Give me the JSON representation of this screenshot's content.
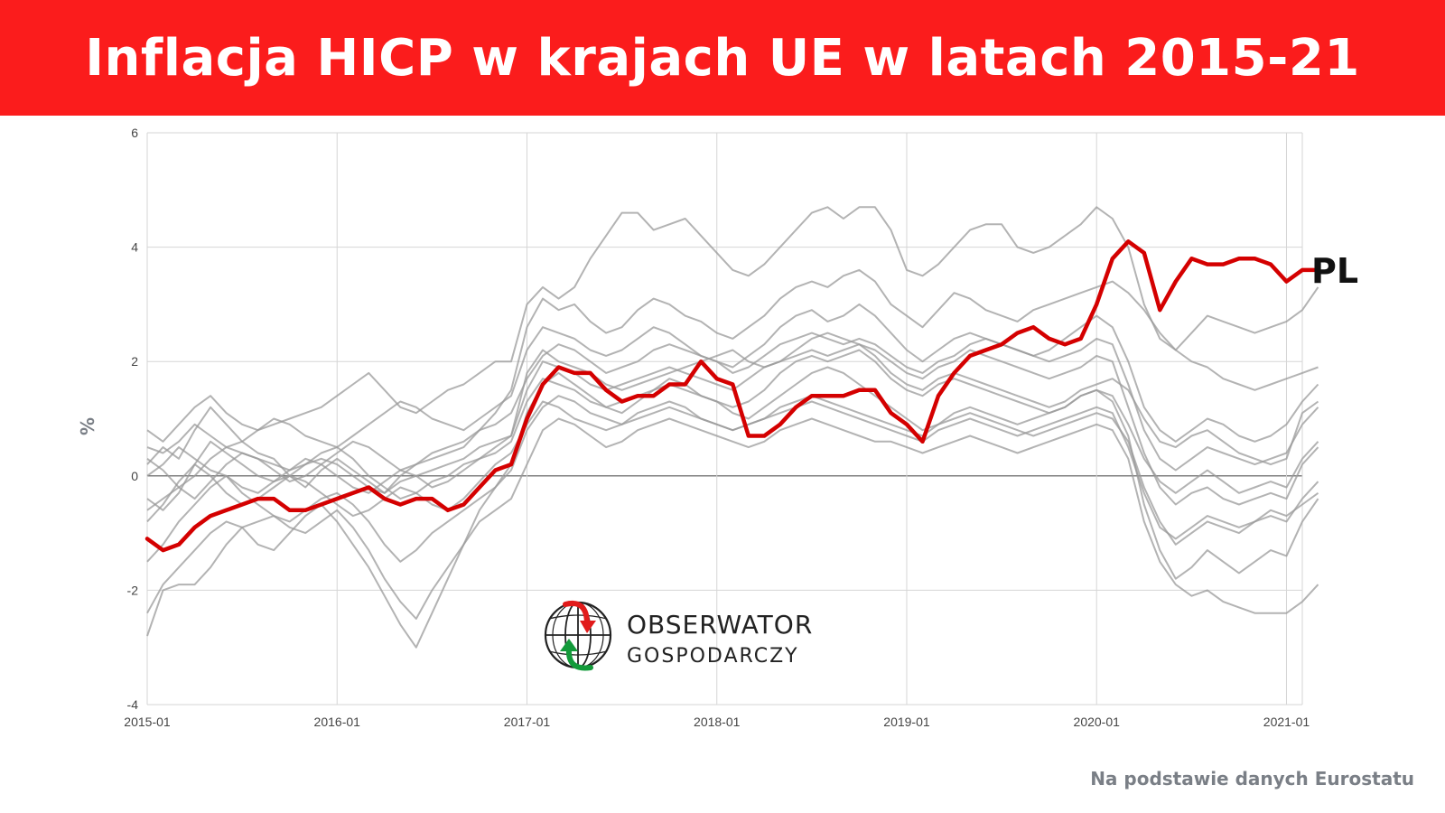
{
  "header": {
    "title": "Inflacja HICP w krajach UE w latach 2015-21"
  },
  "source_note": "Na podstawie danych Eurostatu",
  "logo": {
    "line1": "OBSERWATOR",
    "line2": "GOSPODARCZY",
    "icon": "globe-arrows-icon"
  },
  "colors": {
    "banner": "#fb1c1c",
    "highlight": "#d40000",
    "others": "#9a9a9a",
    "grid": "#d6d6d6"
  },
  "chart_data": {
    "type": "line",
    "title": "Inflacja HICP w krajach UE w latach 2015-21",
    "xlabel": "",
    "ylabel": "%",
    "ylim": [
      -4,
      6
    ],
    "yticks": [
      "-4",
      "-2",
      "0",
      "2",
      "4",
      "6"
    ],
    "xticks": [
      "2015-01",
      "2016-01",
      "2017-01",
      "2018-01",
      "2019-01",
      "2020-01",
      "2021-01"
    ],
    "grid": true,
    "x_start": "2015-01",
    "x_end": "2021-02",
    "highlight_label": "PL",
    "series": [
      {
        "name": "PL",
        "highlight": true,
        "values": [
          -1.1,
          -1.3,
          -1.2,
          -0.9,
          -0.7,
          -0.6,
          -0.5,
          -0.4,
          -0.4,
          -0.6,
          -0.6,
          -0.5,
          -0.4,
          -0.3,
          -0.2,
          -0.4,
          -0.5,
          -0.4,
          -0.4,
          -0.6,
          -0.5,
          -0.2,
          0.1,
          0.2,
          1.0,
          1.6,
          1.9,
          1.8,
          1.8,
          1.5,
          1.3,
          1.4,
          1.4,
          1.6,
          1.6,
          2.0,
          1.7,
          1.6,
          0.7,
          0.7,
          0.9,
          1.2,
          1.4,
          1.4,
          1.4,
          1.5,
          1.5,
          1.1,
          0.9,
          0.6,
          1.4,
          1.8,
          2.1,
          2.2,
          2.3,
          2.5,
          2.6,
          2.4,
          2.3,
          2.4,
          3.0,
          3.8,
          4.1,
          3.9,
          2.9,
          3.4,
          3.8,
          3.7,
          3.7,
          3.8,
          3.8,
          3.7,
          3.4,
          3.6,
          3.6
        ]
      },
      {
        "values": [
          0.2,
          0.5,
          0.3,
          0.8,
          1.2,
          0.9,
          0.6,
          0.4,
          0.3,
          0.0,
          -0.2,
          0.1,
          0.3,
          0.1,
          -0.1,
          -0.3,
          0.0,
          0.2,
          0.3,
          0.4,
          0.5,
          0.8,
          1.1,
          1.5,
          2.6,
          3.1,
          2.9,
          3.0,
          2.7,
          2.5,
          2.6,
          2.9,
          3.1,
          3.0,
          2.8,
          2.7,
          2.5,
          2.4,
          2.6,
          2.8,
          3.1,
          3.3,
          3.4,
          3.3,
          3.5,
          3.6,
          3.4,
          3.0,
          2.8,
          2.6,
          2.9,
          3.2,
          3.1,
          2.9,
          2.8,
          2.7,
          2.9,
          3.0,
          3.1,
          3.2,
          3.3,
          3.4,
          3.2,
          2.9,
          2.5,
          2.2,
          2.0,
          1.9,
          1.7,
          1.6,
          1.5,
          1.6,
          1.7,
          1.8,
          1.9
        ]
      },
      {
        "values": [
          -0.6,
          -0.4,
          -0.2,
          0.0,
          0.3,
          0.5,
          0.4,
          0.3,
          0.2,
          0.1,
          0.2,
          0.3,
          0.2,
          0.0,
          -0.2,
          -0.3,
          -0.1,
          0.0,
          0.1,
          0.2,
          0.3,
          0.5,
          0.6,
          0.7,
          1.5,
          2.0,
          1.9,
          1.8,
          1.6,
          1.5,
          1.6,
          1.7,
          1.8,
          1.9,
          1.8,
          1.7,
          1.6,
          1.5,
          1.7,
          1.9,
          2.0,
          2.1,
          2.2,
          2.1,
          2.2,
          2.3,
          2.1,
          1.8,
          1.6,
          1.5,
          1.7,
          1.8,
          1.7,
          1.6,
          1.5,
          1.4,
          1.3,
          1.2,
          1.3,
          1.5,
          1.6,
          1.7,
          1.5,
          1.0,
          0.6,
          0.5,
          0.7,
          0.8,
          0.6,
          0.4,
          0.3,
          0.2,
          0.3,
          1.1,
          1.3
        ]
      },
      {
        "values": [
          -1.5,
          -1.2,
          -0.8,
          -0.5,
          -0.2,
          0.0,
          -0.3,
          -0.5,
          -0.7,
          -0.8,
          -0.6,
          -0.4,
          -0.3,
          -0.5,
          -0.8,
          -1.2,
          -1.5,
          -1.3,
          -1.0,
          -0.8,
          -0.6,
          -0.4,
          -0.2,
          0.1,
          0.8,
          1.2,
          1.4,
          1.3,
          1.1,
          1.0,
          0.9,
          1.1,
          1.2,
          1.3,
          1.2,
          1.0,
          0.9,
          0.8,
          0.9,
          1.0,
          1.2,
          1.3,
          1.4,
          1.3,
          1.2,
          1.1,
          1.0,
          0.9,
          0.8,
          0.7,
          0.9,
          1.0,
          1.1,
          1.0,
          0.9,
          0.8,
          0.7,
          0.8,
          0.9,
          1.0,
          1.1,
          1.0,
          0.6,
          -0.2,
          -0.8,
          -1.2,
          -1.0,
          -0.8,
          -0.9,
          -1.0,
          -0.8,
          -0.6,
          -0.7,
          -0.5,
          -0.3
        ]
      },
      {
        "values": [
          -2.8,
          -2.0,
          -1.9,
          -1.9,
          -1.6,
          -1.2,
          -0.9,
          -0.8,
          -0.7,
          -0.9,
          -1.0,
          -0.8,
          -0.6,
          -0.9,
          -1.3,
          -1.8,
          -2.2,
          -2.5,
          -2.0,
          -1.6,
          -1.2,
          -0.8,
          -0.6,
          -0.4,
          0.2,
          0.8,
          1.0,
          0.9,
          0.7,
          0.5,
          0.6,
          0.8,
          0.9,
          1.0,
          0.9,
          0.8,
          0.7,
          0.6,
          0.5,
          0.6,
          0.8,
          0.9,
          1.0,
          0.9,
          0.8,
          0.7,
          0.6,
          0.6,
          0.5,
          0.4,
          0.5,
          0.6,
          0.7,
          0.6,
          0.5,
          0.4,
          0.5,
          0.6,
          0.7,
          0.8,
          0.9,
          0.8,
          0.3,
          -0.8,
          -1.5,
          -1.9,
          -2.1,
          -2.0,
          -2.2,
          -2.3,
          -2.4,
          -2.4,
          -2.4,
          -2.2,
          -1.9
        ]
      },
      {
        "values": [
          0.8,
          0.6,
          0.9,
          1.2,
          1.4,
          1.1,
          0.9,
          0.8,
          0.9,
          1.0,
          1.1,
          1.2,
          1.4,
          1.6,
          1.8,
          1.5,
          1.2,
          1.1,
          1.3,
          1.5,
          1.6,
          1.8,
          2.0,
          2.0,
          3.0,
          3.3,
          3.1,
          3.3,
          3.8,
          4.2,
          4.6,
          4.6,
          4.3,
          4.4,
          4.5,
          4.2,
          3.9,
          3.6,
          3.5,
          3.7,
          4.0,
          4.3,
          4.6,
          4.7,
          4.5,
          4.7,
          4.7,
          4.3,
          3.6,
          3.5,
          3.7,
          4.0,
          4.3,
          4.4,
          4.4,
          4.0,
          3.9,
          4.0,
          4.2,
          4.4,
          4.7,
          4.5,
          4.0,
          3.0,
          2.4,
          2.2,
          2.5,
          2.8,
          2.7,
          2.6,
          2.5,
          2.6,
          2.7,
          2.9,
          3.3
        ]
      },
      {
        "values": [
          0.0,
          0.2,
          0.5,
          0.3,
          0.1,
          0.0,
          -0.2,
          -0.3,
          -0.1,
          0.0,
          0.2,
          0.4,
          0.5,
          0.3,
          0.0,
          -0.2,
          -0.4,
          -0.3,
          -0.1,
          0.0,
          0.2,
          0.3,
          0.5,
          0.7,
          1.8,
          2.2,
          2.0,
          1.9,
          1.8,
          1.6,
          1.5,
          1.6,
          1.7,
          1.8,
          1.9,
          2.0,
          2.1,
          2.2,
          2.0,
          1.9,
          2.0,
          2.2,
          2.4,
          2.5,
          2.4,
          2.3,
          2.2,
          2.0,
          1.8,
          1.7,
          1.9,
          2.0,
          2.2,
          2.1,
          2.0,
          1.9,
          1.8,
          1.7,
          1.8,
          1.9,
          2.1,
          2.0,
          1.2,
          0.4,
          -0.2,
          -0.5,
          -0.3,
          -0.2,
          -0.4,
          -0.5,
          -0.4,
          -0.3,
          -0.4,
          0.2,
          0.5
        ]
      },
      {
        "values": [
          -0.4,
          -0.6,
          -0.3,
          0.2,
          0.6,
          0.4,
          0.2,
          0.0,
          -0.1,
          0.1,
          0.3,
          0.2,
          0.0,
          -0.2,
          -0.3,
          -0.1,
          0.1,
          0.0,
          -0.2,
          -0.1,
          0.1,
          0.3,
          0.4,
          0.6,
          1.3,
          1.7,
          1.6,
          1.5,
          1.3,
          1.2,
          1.3,
          1.4,
          1.5,
          1.6,
          1.5,
          1.4,
          1.3,
          1.2,
          1.3,
          1.5,
          1.8,
          2.0,
          2.1,
          2.0,
          2.1,
          2.2,
          2.0,
          1.7,
          1.5,
          1.4,
          1.6,
          1.7,
          1.6,
          1.5,
          1.4,
          1.3,
          1.2,
          1.1,
          1.2,
          1.4,
          1.5,
          1.4,
          0.9,
          0.3,
          -0.1,
          -0.3,
          -0.1,
          0.1,
          -0.1,
          -0.3,
          -0.2,
          -0.1,
          -0.2,
          0.3,
          0.6
        ]
      },
      {
        "values": [
          -2.4,
          -1.9,
          -1.6,
          -1.3,
          -1.0,
          -0.8,
          -0.9,
          -1.2,
          -1.3,
          -1.0,
          -0.7,
          -0.5,
          -0.8,
          -1.2,
          -1.6,
          -2.1,
          -2.6,
          -3.0,
          -2.4,
          -1.8,
          -1.2,
          -0.6,
          -0.2,
          0.2,
          1.1,
          1.6,
          1.8,
          1.6,
          1.4,
          1.2,
          1.1,
          1.3,
          1.5,
          1.7,
          1.6,
          1.4,
          1.3,
          1.1,
          1.0,
          1.2,
          1.4,
          1.6,
          1.8,
          1.9,
          1.8,
          1.6,
          1.4,
          1.2,
          1.0,
          0.8,
          0.9,
          1.1,
          1.2,
          1.1,
          1.0,
          0.9,
          1.0,
          1.1,
          1.2,
          1.4,
          1.5,
          1.3,
          0.7,
          -0.5,
          -1.3,
          -1.8,
          -1.6,
          -1.3,
          -1.5,
          -1.7,
          -1.5,
          -1.3,
          -1.4,
          -0.8,
          -0.4
        ]
      },
      {
        "values": [
          0.5,
          0.4,
          0.6,
          0.9,
          0.7,
          0.5,
          0.6,
          0.8,
          1.0,
          0.9,
          0.7,
          0.6,
          0.5,
          0.7,
          0.9,
          1.1,
          1.3,
          1.2,
          1.0,
          0.9,
          0.8,
          1.0,
          1.2,
          1.4,
          2.2,
          2.6,
          2.5,
          2.4,
          2.2,
          2.1,
          2.2,
          2.4,
          2.6,
          2.5,
          2.3,
          2.1,
          2.0,
          1.9,
          2.1,
          2.3,
          2.6,
          2.8,
          2.9,
          2.7,
          2.8,
          3.0,
          2.8,
          2.5,
          2.2,
          2.0,
          2.2,
          2.4,
          2.5,
          2.4,
          2.3,
          2.2,
          2.1,
          2.2,
          2.4,
          2.6,
          2.8,
          2.6,
          2.0,
          1.2,
          0.8,
          0.6,
          0.8,
          1.0,
          0.9,
          0.7,
          0.6,
          0.7,
          0.9,
          1.3,
          1.6
        ]
      },
      {
        "values": [
          -0.8,
          -0.5,
          -0.1,
          0.2,
          0.0,
          -0.3,
          -0.5,
          -0.4,
          -0.2,
          0.0,
          -0.1,
          -0.3,
          -0.5,
          -0.7,
          -0.6,
          -0.4,
          -0.2,
          -0.3,
          -0.5,
          -0.6,
          -0.4,
          -0.1,
          0.2,
          0.4,
          0.9,
          1.3,
          1.2,
          1.0,
          0.9,
          0.8,
          0.9,
          1.0,
          1.1,
          1.2,
          1.1,
          1.0,
          0.9,
          0.8,
          0.9,
          1.0,
          1.1,
          1.2,
          1.3,
          1.2,
          1.1,
          1.0,
          0.9,
          0.8,
          0.7,
          0.6,
          0.8,
          0.9,
          1.0,
          0.9,
          0.8,
          0.7,
          0.8,
          0.9,
          1.0,
          1.1,
          1.2,
          1.1,
          0.5,
          -0.3,
          -0.9,
          -1.1,
          -0.9,
          -0.7,
          -0.8,
          -0.9,
          -0.8,
          -0.7,
          -0.8,
          -0.4,
          -0.1
        ]
      },
      {
        "values": [
          0.3,
          0.1,
          -0.2,
          -0.4,
          -0.1,
          0.2,
          0.4,
          0.3,
          0.1,
          -0.1,
          0.0,
          0.2,
          0.4,
          0.6,
          0.5,
          0.3,
          0.1,
          0.2,
          0.4,
          0.5,
          0.6,
          0.8,
          0.9,
          1.1,
          1.7,
          2.1,
          2.3,
          2.2,
          2.0,
          1.8,
          1.9,
          2.0,
          2.2,
          2.3,
          2.2,
          2.1,
          2.0,
          1.8,
          1.9,
          2.1,
          2.3,
          2.4,
          2.5,
          2.4,
          2.3,
          2.4,
          2.3,
          2.1,
          1.9,
          1.8,
          2.0,
          2.1,
          2.3,
          2.4,
          2.3,
          2.2,
          2.1,
          2.0,
          2.1,
          2.2,
          2.4,
          2.3,
          1.6,
          0.8,
          0.3,
          0.1,
          0.3,
          0.5,
          0.4,
          0.3,
          0.2,
          0.3,
          0.4,
          0.9,
          1.2
        ]
      }
    ]
  }
}
